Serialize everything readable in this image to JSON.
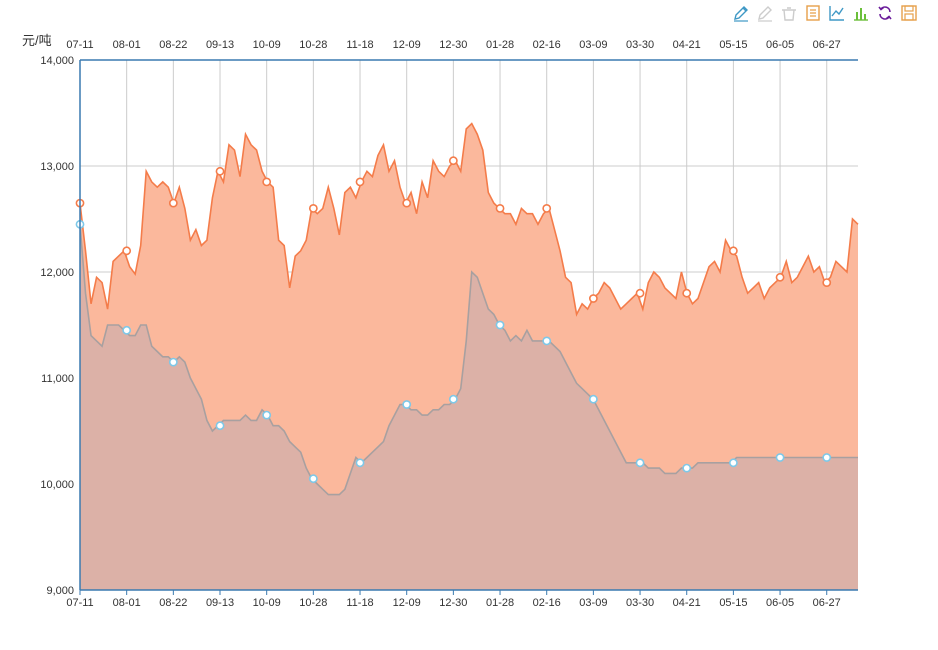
{
  "toolbar": {
    "tools": [
      {
        "name": "mark-pen-icon",
        "color": "#3e98c5"
      },
      {
        "name": "eraser-icon",
        "color": "#cccccc"
      },
      {
        "name": "clear-marks-icon",
        "color": "#cccccc"
      },
      {
        "name": "data-view-icon",
        "color": "#e6a04a"
      },
      {
        "name": "line-chart-icon",
        "color": "#3e98c5"
      },
      {
        "name": "bar-chart-icon",
        "color": "#6bbf3a"
      },
      {
        "name": "restore-icon",
        "color": "#6a1b9a"
      },
      {
        "name": "save-image-icon",
        "color": "#e6a04a"
      }
    ]
  },
  "chart_data": {
    "type": "area",
    "y_unit": "元/吨",
    "ylim": [
      9000,
      14000
    ],
    "y_ticks": [
      "9,000",
      "10,000",
      "11,000",
      "12,000",
      "13,000",
      "14,000"
    ],
    "x_ticks": [
      "07-11",
      "08-01",
      "08-22",
      "09-13",
      "10-09",
      "10-28",
      "11-18",
      "12-09",
      "12-30",
      "01-28",
      "02-16",
      "03-09",
      "03-30",
      "04-21",
      "05-15",
      "06-05",
      "06-27"
    ],
    "grid": true,
    "series": [
      {
        "color": "#f47c4a",
        "fill": "#fbb89c",
        "values": [
          12650,
          12200,
          11700,
          11950,
          11900,
          11650,
          12100,
          12150,
          12200,
          12050,
          11980,
          12250,
          12950,
          12850,
          12800,
          12850,
          12800,
          12650,
          12800,
          12600,
          12300,
          12400,
          12250,
          12300,
          12700,
          12950,
          12850,
          13200,
          13150,
          12900,
          13300,
          13200,
          13150,
          12950,
          12850,
          12800,
          12300,
          12250,
          11850,
          12150,
          12200,
          12300,
          12600,
          12550,
          12600,
          12800,
          12600,
          12350,
          12750,
          12800,
          12700,
          12850,
          12950,
          12900,
          13100,
          13200,
          12950,
          13050,
          12800,
          12650,
          12750,
          12550,
          12850,
          12700,
          13050,
          12950,
          12900,
          13000,
          13050,
          12950,
          13350,
          13400,
          13300,
          13150,
          12750,
          12650,
          12600,
          12550,
          12550,
          12450,
          12600,
          12550,
          12550,
          12450,
          12550,
          12600,
          12400,
          12200,
          11950,
          11900,
          11600,
          11700,
          11650,
          11750,
          11800,
          11900,
          11850,
          11750,
          11650,
          11700,
          11750,
          11800,
          11650,
          11900,
          12000,
          11950,
          11850,
          11800,
          11750,
          12000,
          11800,
          11700,
          11750,
          11900,
          12050,
          12100,
          12000,
          12300,
          12200,
          12150,
          11950,
          11800,
          11850,
          11900,
          11750,
          11850,
          11900,
          11950,
          12100,
          11900,
          11950,
          12050,
          12150,
          12000,
          12050,
          11900,
          11950,
          12100,
          12050,
          12000,
          12500,
          12450
        ]
      },
      {
        "color": "#a8a0a0",
        "fill": "#dcb1a7",
        "values": [
          12450,
          11800,
          11400,
          11350,
          11300,
          11500,
          11500,
          11500,
          11450,
          11400,
          11400,
          11500,
          11500,
          11300,
          11250,
          11200,
          11200,
          11150,
          11200,
          11150,
          11000,
          10900,
          10800,
          10600,
          10500,
          10550,
          10600,
          10600,
          10600,
          10600,
          10650,
          10600,
          10600,
          10700,
          10650,
          10550,
          10550,
          10500,
          10400,
          10350,
          10300,
          10150,
          10050,
          10000,
          9950,
          9900,
          9900,
          9900,
          9950,
          10100,
          10250,
          10200,
          10250,
          10300,
          10350,
          10400,
          10550,
          10650,
          10750,
          10750,
          10700,
          10700,
          10650,
          10650,
          10700,
          10700,
          10750,
          10750,
          10800,
          10900,
          11350,
          12000,
          11950,
          11800,
          11650,
          11600,
          11500,
          11450,
          11350,
          11400,
          11350,
          11450,
          11350,
          11350,
          11350,
          11350,
          11300,
          11250,
          11150,
          11050,
          10950,
          10900,
          10850,
          10800,
          10700,
          10600,
          10500,
          10400,
          10300,
          10200,
          10200,
          10200,
          10200,
          10150,
          10150,
          10150,
          10100,
          10100,
          10100,
          10150,
          10150,
          10150,
          10200,
          10200,
          10200,
          10200,
          10200,
          10200,
          10200,
          10250,
          10250,
          10250,
          10250,
          10250,
          10250,
          10250,
          10250,
          10250,
          10250,
          10250,
          10250,
          10250,
          10250,
          10250,
          10250,
          10250,
          10250,
          10250,
          10250,
          10250,
          10250,
          10250
        ]
      }
    ]
  }
}
